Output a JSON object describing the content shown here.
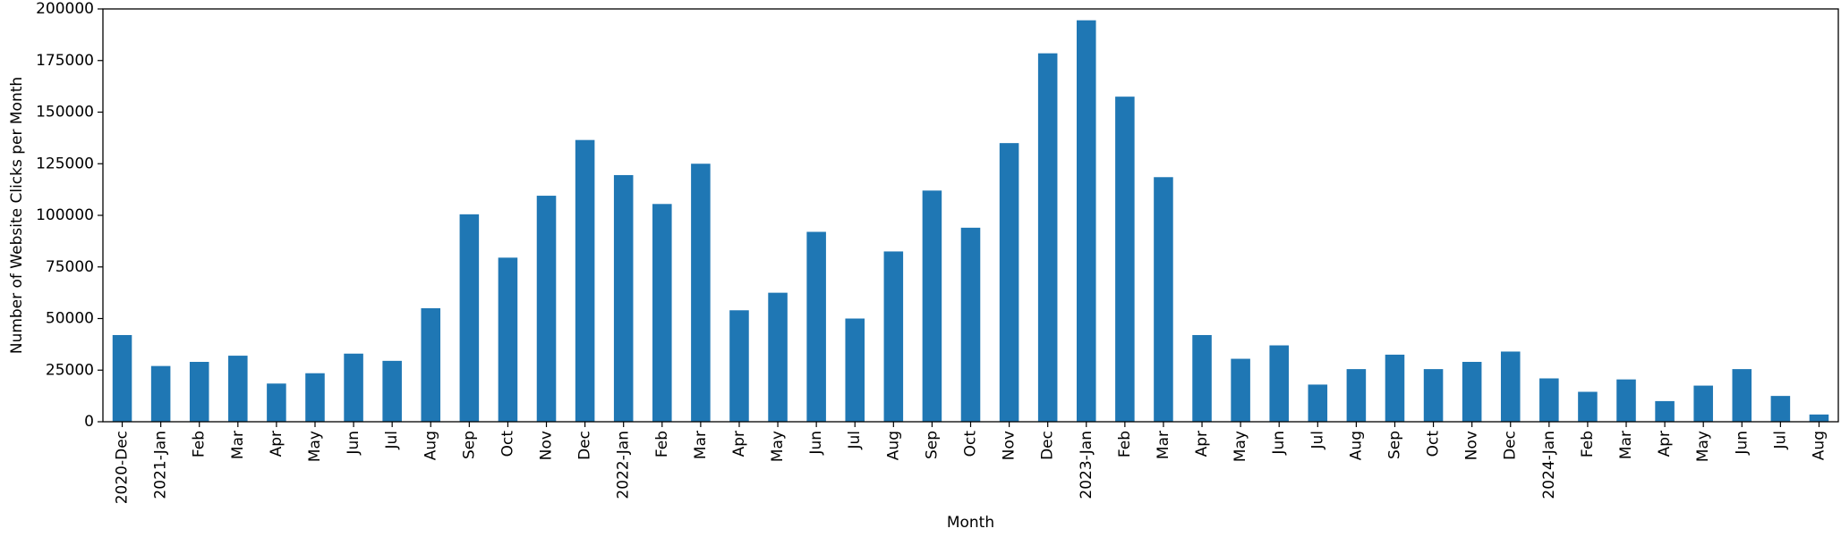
{
  "chart_data": {
    "type": "bar",
    "title": "",
    "xlabel": "Month",
    "ylabel": "Number of Website Clicks per Month",
    "ylim": [
      0,
      200000
    ],
    "yticks": [
      0,
      25000,
      50000,
      75000,
      100000,
      125000,
      150000,
      175000,
      200000
    ],
    "grid": false,
    "bar_color": "#1f77b4",
    "categories": [
      "2020-Dec",
      "2021-Jan",
      "Feb",
      "Mar",
      "Apr",
      "May",
      "Jun",
      "Jul",
      "Aug",
      "Sep",
      "Oct",
      "Nov",
      "Dec",
      "2022-Jan",
      "Feb",
      "Mar",
      "Apr",
      "May",
      "Jun",
      "Jul",
      "Aug",
      "Sep",
      "Oct",
      "Nov",
      "Dec",
      "2023-Jan",
      "Feb",
      "Mar",
      "Apr",
      "May",
      "Jun",
      "Jul",
      "Aug",
      "Sep",
      "Oct",
      "Nov",
      "Dec",
      "2024-Jan",
      "Feb",
      "Mar",
      "Apr",
      "May",
      "Jun",
      "Jul",
      "Aug"
    ],
    "values": [
      42000,
      27000,
      29000,
      32000,
      18500,
      23500,
      33000,
      29500,
      55000,
      100500,
      79500,
      109500,
      136500,
      119500,
      105500,
      125000,
      54000,
      62500,
      92000,
      50000,
      82500,
      112000,
      94000,
      135000,
      178500,
      194500,
      157500,
      118500,
      42000,
      30500,
      37000,
      18000,
      25500,
      32500,
      25500,
      29000,
      34000,
      21000,
      14500,
      20500,
      10000,
      17500,
      25500,
      12500,
      3500
    ]
  }
}
